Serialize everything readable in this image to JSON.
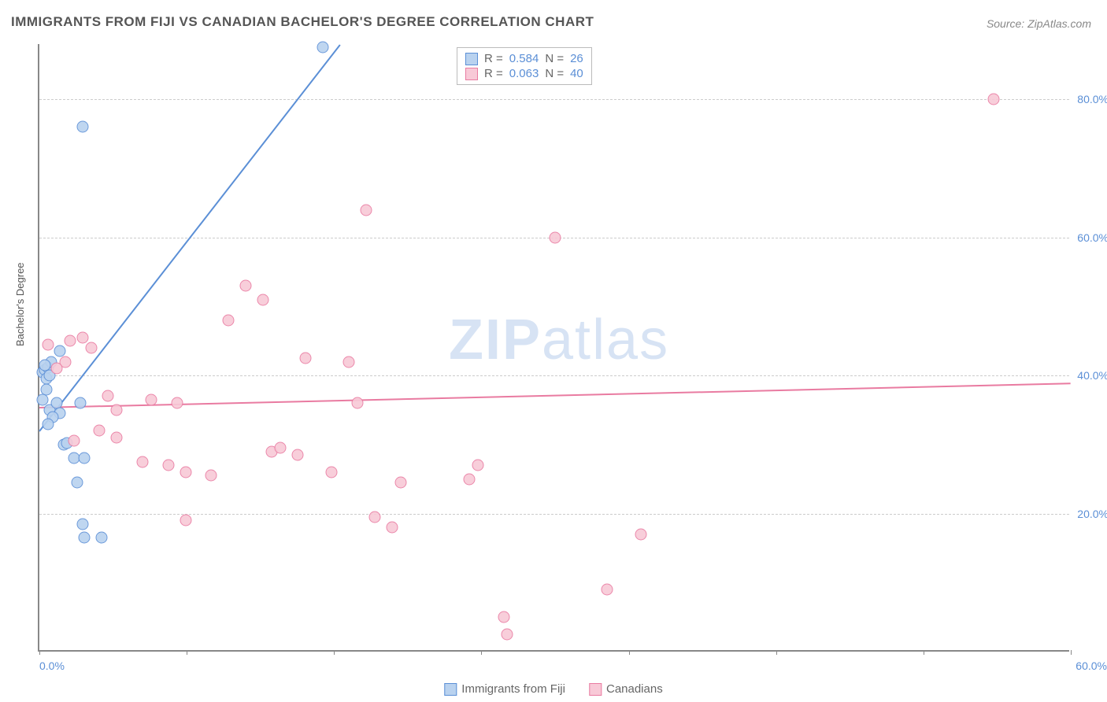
{
  "title": "IMMIGRANTS FROM FIJI VS CANADIAN BACHELOR'S DEGREE CORRELATION CHART",
  "source": "Source: ZipAtlas.com",
  "watermark": {
    "bold": "ZIP",
    "light": "atlas"
  },
  "chart": {
    "type": "scatter",
    "ylabel": "Bachelor's Degree",
    "xlim": [
      0,
      60
    ],
    "ylim": [
      0,
      88
    ],
    "xticks": [
      0,
      8.57,
      17.14,
      25.71,
      34.29,
      42.86,
      51.43,
      60
    ],
    "x_tick_labels_shown": {
      "first": "0.0%",
      "last": "60.0%"
    },
    "yticks": [
      {
        "v": 20,
        "label": "20.0%"
      },
      {
        "v": 40,
        "label": "40.0%"
      },
      {
        "v": 60,
        "label": "60.0%"
      },
      {
        "v": 80,
        "label": "80.0%"
      }
    ],
    "background_color": "#ffffff",
    "grid_color": "#cccccc",
    "axis_color": "#888888",
    "marker_radius": 7.5,
    "marker_stroke_width": 1.5,
    "marker_fill_opacity": 0.25,
    "series": [
      {
        "name": "Immigrants from Fiji",
        "stroke": "#5b8fd6",
        "fill": "#b9d2ef",
        "R": "0.584",
        "N": "26",
        "trend": {
          "x1": 0,
          "y1": 32,
          "x2": 17.5,
          "y2": 88
        },
        "points": [
          [
            0.2,
            40.5
          ],
          [
            0.3,
            40.8
          ],
          [
            0.4,
            39.5
          ],
          [
            0.5,
            41.2
          ],
          [
            0.6,
            40.0
          ],
          [
            0.7,
            42.0
          ],
          [
            0.4,
            38.0
          ],
          [
            0.2,
            36.5
          ],
          [
            0.6,
            35.0
          ],
          [
            1.0,
            36.0
          ],
          [
            1.2,
            34.5
          ],
          [
            0.8,
            34.0
          ],
          [
            0.5,
            33.0
          ],
          [
            1.4,
            30.0
          ],
          [
            1.6,
            30.2
          ],
          [
            1.2,
            43.5
          ],
          [
            2.4,
            36.0
          ],
          [
            2.0,
            28.0
          ],
          [
            2.6,
            28.0
          ],
          [
            2.2,
            24.5
          ],
          [
            2.5,
            18.5
          ],
          [
            2.6,
            16.5
          ],
          [
            3.6,
            16.5
          ],
          [
            2.5,
            76.0
          ],
          [
            16.5,
            87.5
          ],
          [
            0.3,
            41.5
          ]
        ]
      },
      {
        "name": "Canadians",
        "stroke": "#e97ba1",
        "fill": "#f8c9d7",
        "R": "0.063",
        "N": "40",
        "trend": {
          "x1": 0,
          "y1": 35.5,
          "x2": 60,
          "y2": 39.0
        },
        "points": [
          [
            0.5,
            44.5
          ],
          [
            1.8,
            45.0
          ],
          [
            2.5,
            45.5
          ],
          [
            1.5,
            42.0
          ],
          [
            13.0,
            51.0
          ],
          [
            12.0,
            53.0
          ],
          [
            11.0,
            48.0
          ],
          [
            18.0,
            42.0
          ],
          [
            19.0,
            64.0
          ],
          [
            15.5,
            42.5
          ],
          [
            18.5,
            36.0
          ],
          [
            4.0,
            37.0
          ],
          [
            6.5,
            36.5
          ],
          [
            8.0,
            36.0
          ],
          [
            4.5,
            35.0
          ],
          [
            3.5,
            32.0
          ],
          [
            4.5,
            31.0
          ],
          [
            6.0,
            27.5
          ],
          [
            7.5,
            27.0
          ],
          [
            8.5,
            26.0
          ],
          [
            10.0,
            25.5
          ],
          [
            13.5,
            29.0
          ],
          [
            15.0,
            28.5
          ],
          [
            17.0,
            26.0
          ],
          [
            8.5,
            19.0
          ],
          [
            19.5,
            19.5
          ],
          [
            20.5,
            18.0
          ],
          [
            21.0,
            24.5
          ],
          [
            25.0,
            25.0
          ],
          [
            25.5,
            27.0
          ],
          [
            30.0,
            60.0
          ],
          [
            35.0,
            17.0
          ],
          [
            33.0,
            9.0
          ],
          [
            27.0,
            5.0
          ],
          [
            27.2,
            2.5
          ],
          [
            55.5,
            80.0
          ],
          [
            2.0,
            30.5
          ],
          [
            3.0,
            44.0
          ],
          [
            1.0,
            41.0
          ],
          [
            14.0,
            29.5
          ]
        ]
      }
    ]
  },
  "legend_bottom": [
    {
      "label": "Immigrants from Fiji",
      "stroke": "#5b8fd6",
      "fill": "#b9d2ef"
    },
    {
      "label": "Canadians",
      "stroke": "#e97ba1",
      "fill": "#f8c9d7"
    }
  ]
}
